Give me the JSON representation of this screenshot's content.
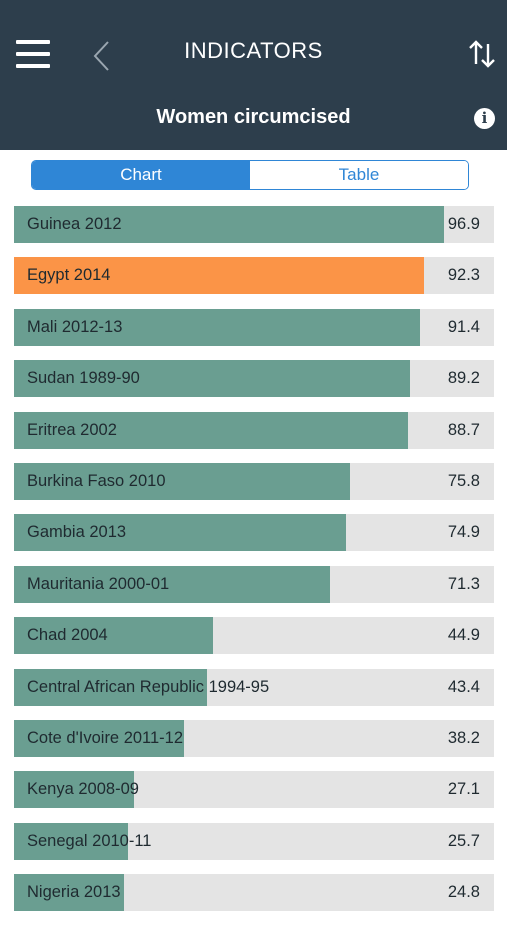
{
  "header": {
    "title": "INDICATORS",
    "subtitle": "Women circumcised",
    "info_glyph": "i"
  },
  "tabs": [
    {
      "label": "Chart",
      "active": true
    },
    {
      "label": "Table",
      "active": false
    }
  ],
  "colors": {
    "header_bg": "#2d3e4c",
    "bar_default": "#6a9e91",
    "bar_highlight": "#fb9447",
    "bar_track": "#e4e4e4",
    "segment_accent": "#2f86d6"
  },
  "chart_data": {
    "type": "bar",
    "orientation": "horizontal",
    "xlim": [
      0,
      100
    ],
    "highlighted": "Egypt 2014",
    "categories": [
      "Guinea 2012",
      "Egypt 2014",
      "Mali 2012-13",
      "Sudan 1989-90",
      "Eritrea 2002",
      "Burkina Faso 2010",
      "Gambia 2013",
      "Mauritania 2000-01",
      "Chad 2004",
      "Central African Republic 1994-95",
      "Cote d'Ivoire 2011-12",
      "Kenya 2008-09",
      "Senegal 2010-11",
      "Nigeria 2013"
    ],
    "values": [
      96.9,
      92.3,
      91.4,
      89.2,
      88.7,
      75.8,
      74.9,
      71.3,
      44.9,
      43.4,
      38.2,
      27.1,
      25.7,
      24.8
    ],
    "value_labels": [
      "96.9",
      "92.3",
      "91.4",
      "89.2",
      "88.7",
      "75.8",
      "74.9",
      "71.3",
      "44.9",
      "43.4",
      "38.2",
      "27.1",
      "25.7",
      "24.8"
    ]
  }
}
